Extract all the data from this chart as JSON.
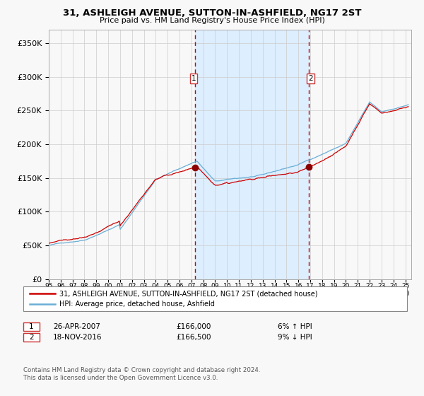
{
  "title": "31, ASHLEIGH AVENUE, SUTTON-IN-ASHFIELD, NG17 2ST",
  "subtitle": "Price paid vs. HM Land Registry's House Price Index (HPI)",
  "legend_line1": "31, ASHLEIGH AVENUE, SUTTON-IN-ASHFIELD, NG17 2ST (detached house)",
  "legend_line2": "HPI: Average price, detached house, Ashfield",
  "annotation1": {
    "label": "1",
    "date_str": "26-APR-2007",
    "price": "£166,000",
    "pct": "6% ↑ HPI",
    "x_year": 2007.32
  },
  "annotation2": {
    "label": "2",
    "date_str": "18-NOV-2016",
    "price": "£166,500",
    "pct": "9% ↓ HPI",
    "x_year": 2016.88
  },
  "footnote1": "Contains HM Land Registry data © Crown copyright and database right 2024.",
  "footnote2": "This data is licensed under the Open Government Licence v3.0.",
  "hpi_color": "#6aaed6",
  "price_color": "#cc0000",
  "dot_color": "#8b0000",
  "vline_color": "#cc0000",
  "shade_color": "#ddeeff",
  "background_color": "#f8f8f8",
  "grid_color": "#cccccc",
  "ylim": [
    0,
    370000
  ],
  "xlim_start": 1995.0,
  "xlim_end": 2025.5
}
